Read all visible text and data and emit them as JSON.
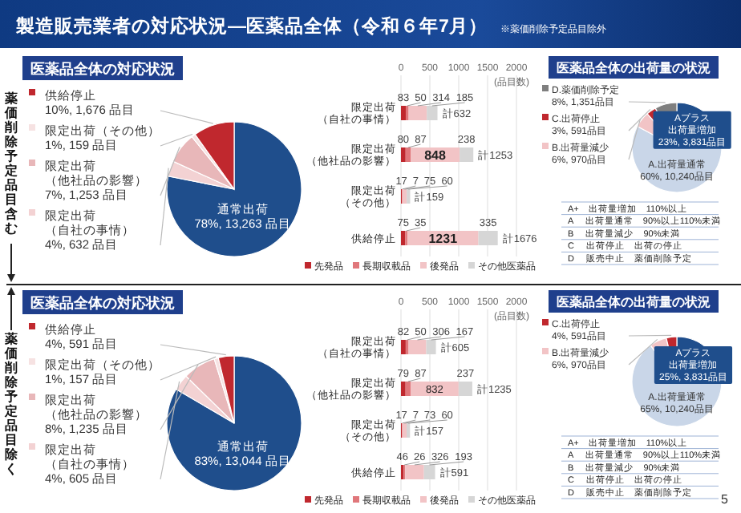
{
  "chart_data": [
    {
      "type": "other",
      "title": "製造販売業者の対応状況—医薬品全体（令和６年7月）",
      "annotations": [
        "※薬価削除予定品目除外",
        "薬価削除予定品目含む",
        "薬価削除予定品目除く",
        "5"
      ]
    },
    {
      "type": "pie",
      "title": "医薬品全体の対応状況",
      "categories": [
        "通常出荷",
        "限定出荷（自社の事情）",
        "限定出荷（他社品の影響）",
        "限定出荷（その他）",
        "供給停止"
      ],
      "values": [
        13263,
        632,
        1253,
        159,
        1676
      ],
      "value_labels": [
        "78%, 13,263 品目",
        "4%, 632 品目",
        "7%, 1,253 品目",
        "1%, 159 品目",
        "10%, 1,676 品目"
      ],
      "colors": [
        "#1f4e8c",
        "#f3d2d3",
        "#e8b7b9",
        "#f6e2e2",
        "#c0282e"
      ],
      "legend": "left"
    },
    {
      "type": "bar",
      "orientation": "horizontal",
      "stacked": true,
      "categories": [
        "限定出荷（自社の事情）",
        "限定出荷（他社品の影響）",
        "限定出荷（その他）",
        "供給停止"
      ],
      "series": [
        {
          "name": "先発品",
          "color": "#c0282e",
          "values": [
            83,
            80,
            17,
            75
          ]
        },
        {
          "name": "長期収載品",
          "color": "#e0777b",
          "values": [
            50,
            87,
            7,
            35
          ]
        },
        {
          "name": "後発品",
          "color": "#f2c4c6",
          "values": [
            314,
            848,
            75,
            1231
          ]
        },
        {
          "name": "その他医薬品",
          "color": "#d6d6d6",
          "values": [
            185,
            238,
            60,
            335
          ]
        }
      ],
      "totals": [
        "計632",
        "計1253",
        "計159",
        "計1676"
      ],
      "xlim": [
        0,
        2000
      ],
      "xticks": [
        0,
        500,
        1000,
        1500,
        2000
      ],
      "xlabel": "(品目数)",
      "grid": "x",
      "legend": "bottom",
      "data_labels": true
    },
    {
      "type": "pie",
      "title": "医薬品全体の出荷量の状況",
      "legend": "left",
      "categories": [
        "Aプラス出荷量増加",
        "A.出荷量通常",
        "B.出荷量減少",
        "C.出荷停止",
        "D.薬価削除予定"
      ],
      "values": [
        3831,
        10240,
        970,
        591,
        1351
      ],
      "value_labels": [
        "23%, 3,831品目",
        "60%, 10,240品目",
        "6%, 970品目",
        "3%, 591品目",
        "8%, 1,351品目"
      ],
      "colors": [
        "#1f4e8c",
        "#c9d6e8",
        "#f2c4c6",
        "#c0282e",
        "#7f7f7f"
      ],
      "annotations": [
        "A+　出荷量増加　110%以上",
        "A　 出荷量通常　90%以上110%未満",
        "B　 出荷量減少　90%未満",
        "C　 出荷停止　出荷の停止",
        "D　 販売中止　薬価削除予定"
      ]
    },
    {
      "type": "pie",
      "title": "医薬品全体の対応状況",
      "categories": [
        "通常出荷",
        "限定出荷（自社の事情）",
        "限定出荷（他社品の影響）",
        "限定出荷（その他）",
        "供給停止"
      ],
      "values": [
        13044,
        605,
        1235,
        157,
        591
      ],
      "value_labels": [
        "83%, 13,044 品目",
        "4%, 605 品目",
        "8%, 1,235 品目",
        "1%, 157 品目",
        "4%, 591 品目"
      ],
      "colors": [
        "#1f4e8c",
        "#f3d2d3",
        "#e8b7b9",
        "#f6e2e2",
        "#c0282e"
      ],
      "legend": "left"
    },
    {
      "type": "bar",
      "orientation": "horizontal",
      "stacked": true,
      "categories": [
        "限定出荷（自社の事情）",
        "限定出荷（他社品の影響）",
        "限定出荷（その他）",
        "供給停止"
      ],
      "series": [
        {
          "name": "先発品",
          "color": "#c0282e",
          "values": [
            82,
            79,
            17,
            46
          ]
        },
        {
          "name": "長期収載品",
          "color": "#e0777b",
          "values": [
            50,
            87,
            7,
            26
          ]
        },
        {
          "name": "後発品",
          "color": "#f2c4c6",
          "values": [
            306,
            832,
            73,
            326
          ]
        },
        {
          "name": "その他医薬品",
          "color": "#d6d6d6",
          "values": [
            167,
            237,
            60,
            193
          ]
        }
      ],
      "totals": [
        "計605",
        "計1235",
        "計157",
        "計591"
      ],
      "xlim": [
        0,
        2000
      ],
      "xticks": [
        0,
        500,
        1000,
        1500,
        2000
      ],
      "xlabel": "(品目数)",
      "grid": "x",
      "legend": "bottom",
      "data_labels": true
    },
    {
      "type": "pie",
      "title": "医薬品全体の出荷量の状況",
      "legend": "left",
      "categories": [
        "Aプラス出荷量増加",
        "A.出荷量通常",
        "B.出荷量減少",
        "C.出荷停止"
      ],
      "values": [
        3831,
        10240,
        970,
        591
      ],
      "value_labels": [
        "25%, 3,831品目",
        "65%, 10,240品目",
        "6%, 970品目",
        "4%, 591品目"
      ],
      "colors": [
        "#1f4e8c",
        "#c9d6e8",
        "#f2c4c6",
        "#c0282e"
      ],
      "annotations": [
        "A+　出荷量増加　110%以上",
        "A　 出荷量通常　90%以上110%未満",
        "B　 出荷量減少　90%未満",
        "C　 出荷停止　出荷の停止",
        "D　 販売中止　薬価削除予定"
      ]
    }
  ]
}
